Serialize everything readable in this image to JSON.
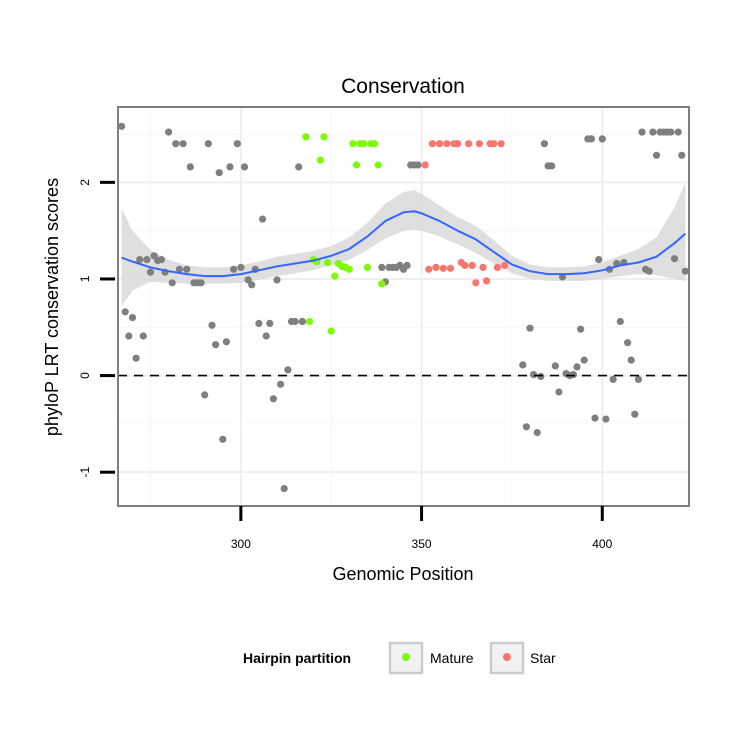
{
  "chart_data": {
    "type": "scatter",
    "title": "Conservation",
    "xlabel": "Genomic Position",
    "ylabel": "phyloP LRT conservation scores",
    "xlim": [
      266,
      424
    ],
    "ylim": [
      -1.35,
      2.78
    ],
    "x_ticks": [
      300,
      350,
      400
    ],
    "y_ticks": [
      -1,
      0,
      1,
      2
    ],
    "grid": true,
    "reference_line": {
      "y": 0,
      "style": "dashed"
    },
    "legend": {
      "title": "Hairpin partition",
      "position": "bottom",
      "entries": [
        {
          "name": "Mature",
          "color": "#7cfc00"
        },
        {
          "name": "Star",
          "color": "#f8766d"
        }
      ]
    },
    "colors": {
      "background": "#7f7f7f",
      "Mature": "#7cfc00",
      "Star": "#f8766d",
      "smooth_line": "#3366ff",
      "ribbon": "#d9d9d9"
    },
    "series": [
      {
        "name": "background",
        "color": "#7f7f7f",
        "x": [
          267,
          268,
          269,
          270,
          271,
          272,
          273,
          274,
          275,
          276,
          277,
          278,
          279,
          280,
          281,
          282,
          283,
          284,
          285,
          286,
          287,
          288,
          289,
          290,
          291,
          292,
          293,
          294,
          295,
          296,
          297,
          298,
          299,
          300,
          301,
          302,
          303,
          304,
          305,
          306,
          307,
          308,
          309,
          310,
          311,
          312,
          313,
          314,
          315,
          316,
          317,
          317,
          339,
          340,
          341,
          342,
          343,
          344,
          345,
          346,
          347,
          348,
          349,
          378,
          379,
          380,
          381,
          382,
          383,
          384,
          385,
          386,
          387,
          388,
          389,
          390,
          391,
          392,
          393,
          394,
          395,
          396,
          397,
          398,
          399,
          400,
          401,
          402,
          403,
          404,
          405,
          406,
          407,
          408,
          409,
          410,
          411,
          412,
          413,
          414,
          415,
          416,
          417,
          418,
          419,
          420,
          421,
          422,
          423
        ],
        "y": [
          2.58,
          0.66,
          0.41,
          0.6,
          0.18,
          1.2,
          0.41,
          1.2,
          1.07,
          1.24,
          1.19,
          1.2,
          1.07,
          2.52,
          0.96,
          2.4,
          1.1,
          2.4,
          1.1,
          2.16,
          0.96,
          0.96,
          0.96,
          -0.2,
          2.4,
          0.52,
          0.32,
          2.1,
          -0.66,
          0.35,
          2.16,
          1.1,
          2.4,
          1.12,
          2.16,
          0.99,
          0.94,
          1.1,
          0.54,
          1.62,
          0.41,
          0.54,
          -0.24,
          0.99,
          -0.09,
          -1.17,
          0.06,
          0.56,
          0.56,
          2.16,
          0.56,
          0.56,
          1.12,
          0.97,
          1.12,
          1.12,
          1.12,
          1.14,
          1.1,
          1.14,
          2.18,
          2.18,
          2.18,
          0.11,
          -0.53,
          0.49,
          0.01,
          -0.59,
          -0.01,
          2.4,
          2.17,
          2.17,
          0.1,
          -0.17,
          1.02,
          0.02,
          0.0,
          0.01,
          0.09,
          0.48,
          0.16,
          2.45,
          2.45,
          -0.44,
          1.2,
          2.45,
          -0.45,
          1.1,
          -0.04,
          1.16,
          0.56,
          1.17,
          0.34,
          0.16,
          -0.4,
          -0.04,
          2.52,
          1.1,
          1.08,
          2.52,
          2.28,
          2.52,
          2.52,
          2.52,
          2.52,
          1.21,
          2.52,
          2.28,
          1.08
        ]
      },
      {
        "name": "Mature",
        "color": "#7cfc00",
        "x": [
          318,
          319,
          320,
          321,
          322,
          323,
          324,
          325,
          326,
          327,
          328,
          329,
          330,
          331,
          332,
          333,
          334,
          335,
          336,
          337,
          338,
          339
        ],
        "y": [
          2.47,
          0.56,
          1.2,
          1.18,
          2.23,
          2.47,
          1.17,
          0.46,
          1.03,
          1.16,
          1.13,
          1.12,
          1.1,
          2.4,
          2.18,
          2.4,
          2.4,
          1.12,
          2.4,
          2.4,
          2.18,
          0.95
        ]
      },
      {
        "name": "Star",
        "color": "#f8766d",
        "x": [
          351,
          352,
          353,
          354,
          355,
          356,
          357,
          358,
          359,
          360,
          361,
          362,
          363,
          364,
          365,
          366,
          367,
          368,
          369,
          370,
          371,
          372,
          373
        ],
        "y": [
          2.18,
          1.1,
          2.4,
          1.12,
          2.4,
          1.11,
          2.4,
          1.11,
          2.4,
          2.4,
          1.17,
          1.14,
          2.4,
          1.14,
          0.96,
          2.4,
          1.12,
          0.98,
          2.4,
          2.4,
          1.12,
          2.4,
          1.14
        ]
      }
    ],
    "smooth": {
      "x": [
        267,
        270,
        275,
        280,
        285,
        290,
        295,
        300,
        305,
        310,
        315,
        320,
        325,
        330,
        335,
        340,
        345,
        348,
        350,
        355,
        360,
        365,
        370,
        375,
        380,
        385,
        390,
        395,
        400,
        405,
        410,
        415,
        420,
        423
      ],
      "y": [
        1.22,
        1.18,
        1.12,
        1.08,
        1.05,
        1.03,
        1.03,
        1.05,
        1.09,
        1.13,
        1.16,
        1.19,
        1.24,
        1.31,
        1.44,
        1.6,
        1.69,
        1.7,
        1.68,
        1.6,
        1.5,
        1.41,
        1.28,
        1.15,
        1.08,
        1.05,
        1.05,
        1.06,
        1.09,
        1.14,
        1.17,
        1.23,
        1.37,
        1.47
      ],
      "ymin": [
        0.72,
        0.88,
        0.97,
        0.96,
        0.95,
        0.95,
        0.95,
        0.96,
        0.99,
        1.03,
        1.06,
        1.09,
        1.14,
        1.2,
        1.3,
        1.42,
        1.5,
        1.51,
        1.5,
        1.44,
        1.36,
        1.27,
        1.16,
        1.06,
        1.0,
        0.98,
        0.98,
        0.98,
        1.0,
        1.03,
        1.05,
        1.04,
        1.0,
        0.98
      ],
      "ymax": [
        1.73,
        1.5,
        1.3,
        1.2,
        1.14,
        1.12,
        1.12,
        1.14,
        1.18,
        1.23,
        1.26,
        1.29,
        1.34,
        1.43,
        1.58,
        1.78,
        1.9,
        1.92,
        1.88,
        1.76,
        1.64,
        1.55,
        1.4,
        1.24,
        1.15,
        1.12,
        1.12,
        1.13,
        1.17,
        1.24,
        1.31,
        1.43,
        1.74,
        2.0
      ]
    }
  }
}
